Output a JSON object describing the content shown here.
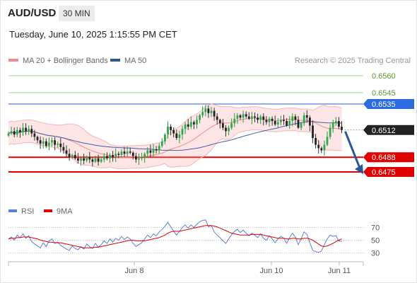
{
  "header": {
    "symbol": "AUD/USD",
    "timeframe": "30 MIN"
  },
  "timestamp": "Tuesday, June 10, 2025 1:15:55 PM CET",
  "legend": {
    "items": [
      {
        "label": "MA 20 + Bollinger Bands",
        "color": "#f08c8c"
      },
      {
        "label": "MA 50",
        "color": "#2b5797"
      }
    ],
    "credit": "Research © 2025 Trading Central"
  },
  "rsi_legend": {
    "items": [
      {
        "label": "RSI",
        "color": "#5b7fd6"
      },
      {
        "label": "9MA",
        "color": "#e00000"
      }
    ]
  },
  "chart_data": [
    {
      "type": "candlestick",
      "ylim": [
        0.646,
        0.657
      ],
      "levels": [
        {
          "value": 0.656,
          "label": "0.6560",
          "style": "green-thin"
        },
        {
          "value": 0.6545,
          "label": "0.6545",
          "style": "green-thin"
        },
        {
          "value": 0.6535,
          "label": "0.6535",
          "style": "blue-resistance"
        },
        {
          "value": 0.6512,
          "label": "0.6512",
          "style": "current-price"
        },
        {
          "value": 0.6488,
          "label": "0.6488",
          "style": "red-support"
        },
        {
          "value": 0.6475,
          "label": "0.6475",
          "style": "red-support"
        }
      ],
      "x_ticks": [
        {
          "label": "Jun 8"
        },
        {
          "label": "Jun 10"
        },
        {
          "label": "Jun 11"
        }
      ],
      "closes": [
        0.6509,
        0.6511,
        0.6508,
        0.6512,
        0.651,
        0.6514,
        0.6511,
        0.6513,
        0.6509,
        0.6506,
        0.6503,
        0.65,
        0.6502,
        0.6498,
        0.6501,
        0.6503,
        0.6499,
        0.65,
        0.6497,
        0.6494,
        0.6491,
        0.6488,
        0.649,
        0.6487,
        0.6485,
        0.6487,
        0.6485,
        0.6488,
        0.6486,
        0.6484,
        0.6487,
        0.6484,
        0.6486,
        0.6489,
        0.6487,
        0.649,
        0.6488,
        0.6491,
        0.649,
        0.6493,
        0.6491,
        0.6493,
        0.6492,
        0.6489,
        0.6486,
        0.6487,
        0.6488,
        0.6491,
        0.6494,
        0.6492,
        0.6495,
        0.6494,
        0.6498,
        0.6502,
        0.6508,
        0.6515,
        0.6512,
        0.6509,
        0.6505,
        0.6508,
        0.6513,
        0.6517,
        0.6515,
        0.6519,
        0.6517,
        0.6521,
        0.6525,
        0.6528,
        0.6531,
        0.6527,
        0.6529,
        0.6524,
        0.6521,
        0.6518,
        0.6514,
        0.6511,
        0.6514,
        0.6518,
        0.6522,
        0.6525,
        0.6523,
        0.6526,
        0.6524,
        0.6522,
        0.6524,
        0.6523,
        0.6521,
        0.6524,
        0.6521,
        0.6519,
        0.6522,
        0.652,
        0.6517,
        0.6519,
        0.6521,
        0.652,
        0.6516,
        0.652,
        0.6524,
        0.6521,
        0.6514,
        0.6518,
        0.6525,
        0.6523,
        0.6516,
        0.6505,
        0.6499,
        0.6496,
        0.6494,
        0.6499,
        0.6506,
        0.6514,
        0.6518,
        0.652,
        0.6515,
        0.6512
      ],
      "rsi": {
        "ylim": [
          20,
          80
        ],
        "ticks": [
          70,
          50,
          30
        ],
        "rsi": [
          52,
          55,
          50,
          58,
          54,
          60,
          53,
          57,
          48,
          44,
          41,
          38,
          46,
          40,
          49,
          52,
          45,
          47,
          42,
          39,
          36,
          34,
          41,
          37,
          35,
          40,
          36,
          44,
          40,
          37,
          45,
          39,
          43,
          49,
          45,
          52,
          47,
          53,
          50,
          56,
          51,
          55,
          52,
          45,
          40,
          43,
          46,
          52,
          58,
          54,
          60,
          57,
          63,
          67,
          72,
          78,
          71,
          64,
          58,
          64,
          70,
          74,
          69,
          74,
          70,
          75,
          79,
          81,
          82,
          71,
          73,
          63,
          58,
          54,
          49,
          45,
          52,
          59,
          64,
          67,
          62,
          66,
          61,
          57,
          61,
          58,
          54,
          60,
          53,
          50,
          57,
          52,
          46,
          52,
          56,
          53,
          45,
          54,
          61,
          55,
          43,
          52,
          63,
          59,
          46,
          34,
          32,
          31,
          33,
          43,
          52,
          58,
          56,
          57,
          49,
          48
        ],
        "ma9": [
          52,
          53,
          53,
          54,
          54,
          55,
          55,
          55,
          54,
          53,
          52,
          50,
          49,
          48,
          47,
          47,
          46,
          46,
          46,
          45,
          44,
          43,
          42,
          41,
          40,
          39,
          38,
          38,
          38,
          38,
          39,
          39,
          40,
          41,
          42,
          43,
          44,
          45,
          46,
          47,
          48,
          49,
          50,
          50,
          49,
          49,
          49,
          49,
          50,
          51,
          52,
          53,
          54,
          56,
          58,
          61,
          63,
          64,
          64,
          64,
          65,
          66,
          67,
          68,
          69,
          70,
          71,
          72,
          73,
          73,
          73,
          72,
          71,
          69,
          67,
          65,
          63,
          61,
          60,
          59,
          58,
          58,
          58,
          58,
          59,
          59,
          59,
          59,
          58,
          57,
          56,
          55,
          54,
          53,
          53,
          53,
          52,
          52,
          53,
          53,
          52,
          52,
          53,
          53,
          52,
          50,
          47,
          44,
          41,
          40,
          41,
          43,
          45,
          48,
          50,
          52
        ]
      }
    }
  ]
}
